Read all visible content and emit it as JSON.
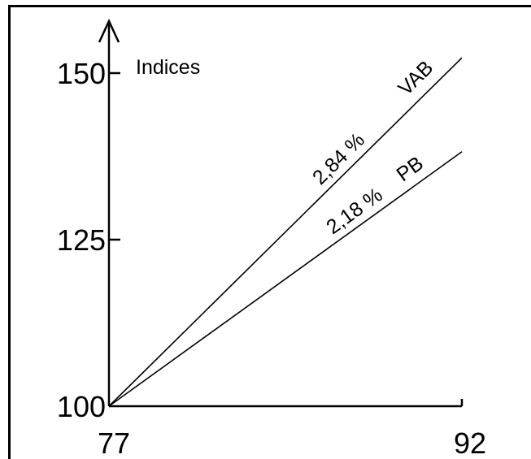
{
  "chart_data": {
    "type": "line",
    "title": "",
    "ylabel": "Indices",
    "xlabel": "",
    "x_ticks": [
      "77",
      "92"
    ],
    "y_ticks": [
      "100",
      "125",
      "150"
    ],
    "xlim": [
      77,
      92
    ],
    "ylim": [
      100,
      150
    ],
    "grid": false,
    "series": [
      {
        "name": "VAB",
        "growth_label": "2,84 %",
        "x": [
          77,
          92
        ],
        "y": [
          100,
          152.3
        ]
      },
      {
        "name": "PB",
        "growth_label": "2,18 %",
        "x": [
          77,
          92
        ],
        "y": [
          100,
          138.2
        ]
      }
    ]
  }
}
